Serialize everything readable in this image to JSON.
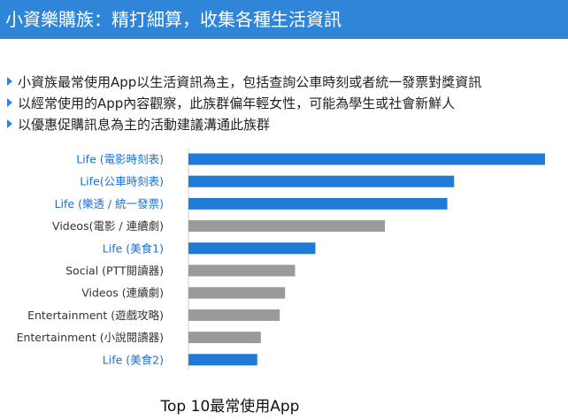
{
  "header": {
    "title": "小資樂購族：精打細算，收集各種生活資訊"
  },
  "bullets": [
    "小資族最常使用App以生活資訊為主，包括查詢公車時刻或者統一發票對獎資訊",
    "以經常使用的App內容觀察，此族群偏年輕女性，可能為學生或社會新鮮人",
    "以優惠促購訊息為主的活動建議溝通此族群"
  ],
  "colors": {
    "header_bg": "#2f86d8",
    "highlight": "#1f7ad8",
    "neutral": "#9a9a9a",
    "highlight_label": "#1f6fd1",
    "neutral_label": "#333333"
  },
  "chart_data": {
    "type": "bar",
    "orientation": "horizontal",
    "title": "Top 10最常使用App",
    "categories": [
      "Life (電影時刻表)",
      "Life(公車時刻表)",
      "Life (樂透 / 統一發票)",
      "Videos(電影 / 連續劇)",
      "Life (美食1)",
      "Social (PTT閱讀器)",
      "Videos (連續劇)",
      "Entertainment (遊戲攻略)",
      "Entertainment (小說閱讀器)",
      "Life (美食2)"
    ],
    "values": [
      100,
      74.5,
      72.6,
      55.1,
      35.6,
      29.9,
      27.1,
      25.6,
      20.3,
      19.3
    ],
    "highlight": [
      true,
      true,
      true,
      false,
      true,
      false,
      false,
      false,
      false,
      true
    ],
    "xlim": [
      0,
      100
    ],
    "grid": false,
    "xlabel": "",
    "ylabel": ""
  }
}
